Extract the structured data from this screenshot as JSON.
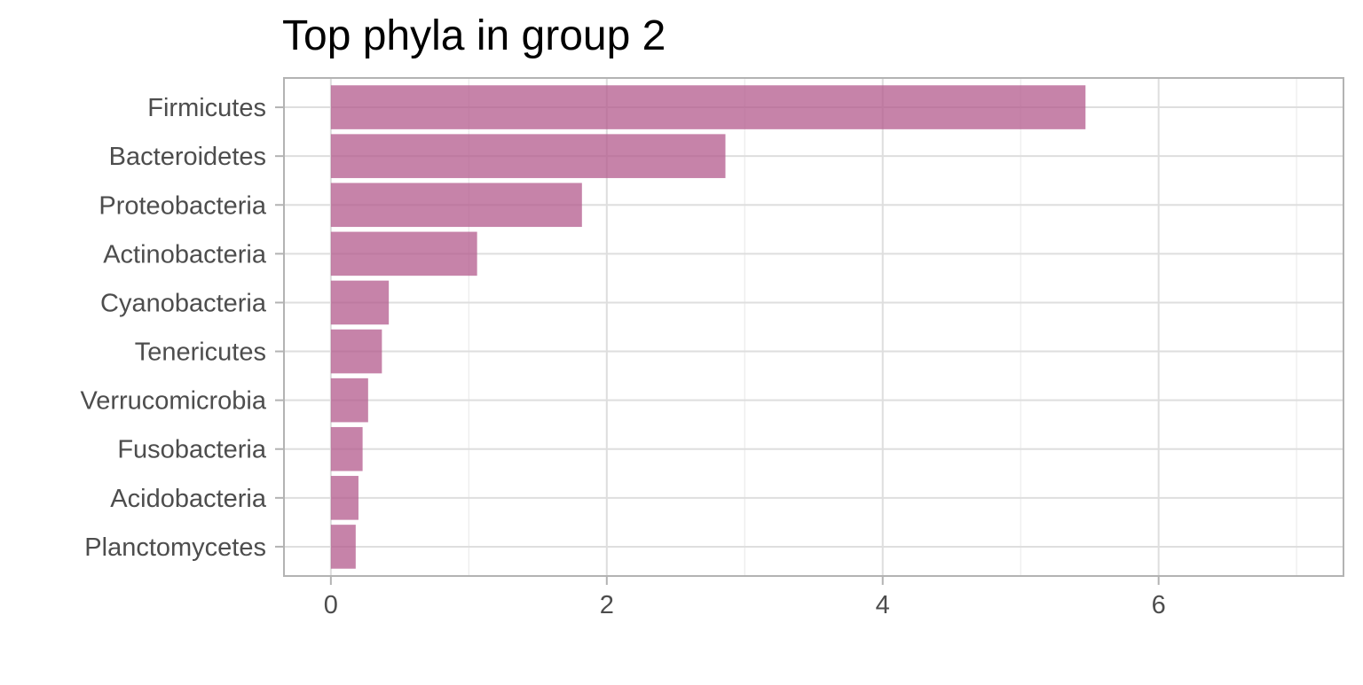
{
  "chart_data": {
    "type": "bar",
    "orientation": "horizontal",
    "title": "Top phyla in group 2",
    "xlabel": "",
    "ylabel": "",
    "categories": [
      "Firmicutes",
      "Bacteroidetes",
      "Proteobacteria",
      "Actinobacteria",
      "Cyanobacteria",
      "Tenericutes",
      "Verrucomicrobia",
      "Fusobacteria",
      "Acidobacteria",
      "Planctomycetes"
    ],
    "values": [
      5.47,
      2.86,
      1.82,
      1.06,
      0.42,
      0.37,
      0.27,
      0.23,
      0.2,
      0.18
    ],
    "xlim": [
      -0.34,
      7.34
    ],
    "x_ticks": [
      0,
      2,
      4,
      6
    ],
    "x_tick_labels": [
      "0",
      "2",
      "4",
      "6"
    ],
    "grid": true,
    "bar_color": "#b35a8c",
    "bar_opacity": 0.75
  }
}
